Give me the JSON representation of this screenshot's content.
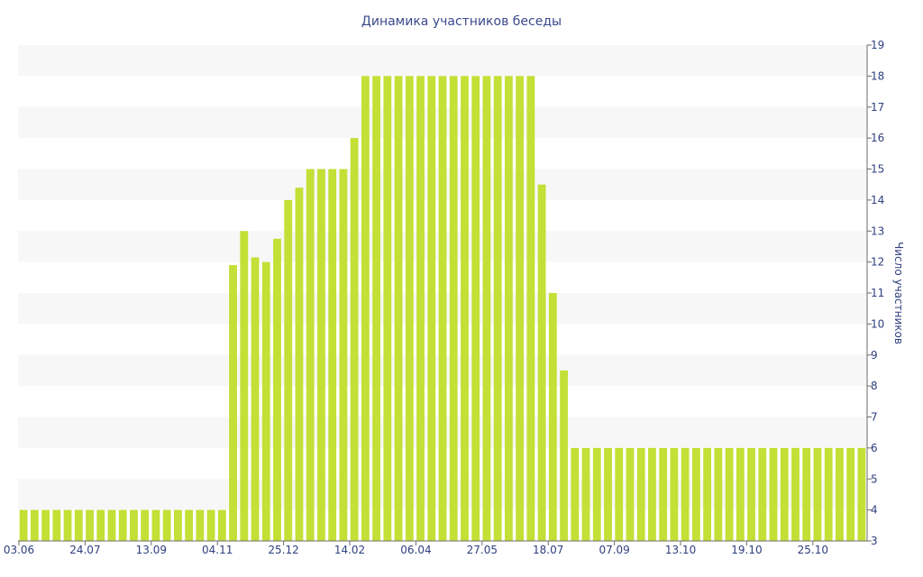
{
  "chart_data": {
    "type": "bar",
    "title": "Динамика участников беседы",
    "ylabel": "Число участников",
    "xlabel": "",
    "ylim": [
      3,
      19
    ],
    "yticks": [
      3,
      4,
      5,
      6,
      7,
      8,
      9,
      10,
      11,
      12,
      13,
      14,
      15,
      16,
      17,
      18,
      19
    ],
    "y_axis_position": "right",
    "grid": "alternating horizontal bands",
    "bar_color": "#c2e035",
    "x_tick_labels": [
      {
        "label": "03.06",
        "index": 0
      },
      {
        "label": "24.07",
        "index": 6
      },
      {
        "label": "13.09",
        "index": 12
      },
      {
        "label": "04.11",
        "index": 18
      },
      {
        "label": "25.12",
        "index": 24
      },
      {
        "label": "14.02",
        "index": 30
      },
      {
        "label": "06.04",
        "index": 36
      },
      {
        "label": "27.05",
        "index": 42
      },
      {
        "label": "18.07",
        "index": 48
      },
      {
        "label": "07.09",
        "index": 54
      },
      {
        "label": "13.10",
        "index": 60
      },
      {
        "label": "19.10",
        "index": 66
      },
      {
        "label": "25.10",
        "index": 72
      }
    ],
    "values": [
      4,
      4,
      4,
      4,
      4,
      4,
      4,
      4,
      4,
      4,
      4,
      4,
      4,
      4,
      4,
      4,
      4,
      4,
      4,
      11.9,
      13,
      12.15,
      12,
      12.75,
      14,
      14.4,
      15,
      15,
      15,
      15,
      16,
      18,
      18,
      18,
      18,
      18,
      18,
      18,
      18,
      18,
      18,
      18,
      18,
      18,
      18,
      18,
      18,
      14.5,
      11,
      8.5,
      6,
      6,
      6,
      6,
      6,
      6,
      6,
      6,
      6,
      6,
      6,
      6,
      6,
      6,
      6,
      6,
      6,
      6,
      6,
      6,
      6,
      6,
      6,
      6,
      6,
      6,
      6
    ]
  }
}
